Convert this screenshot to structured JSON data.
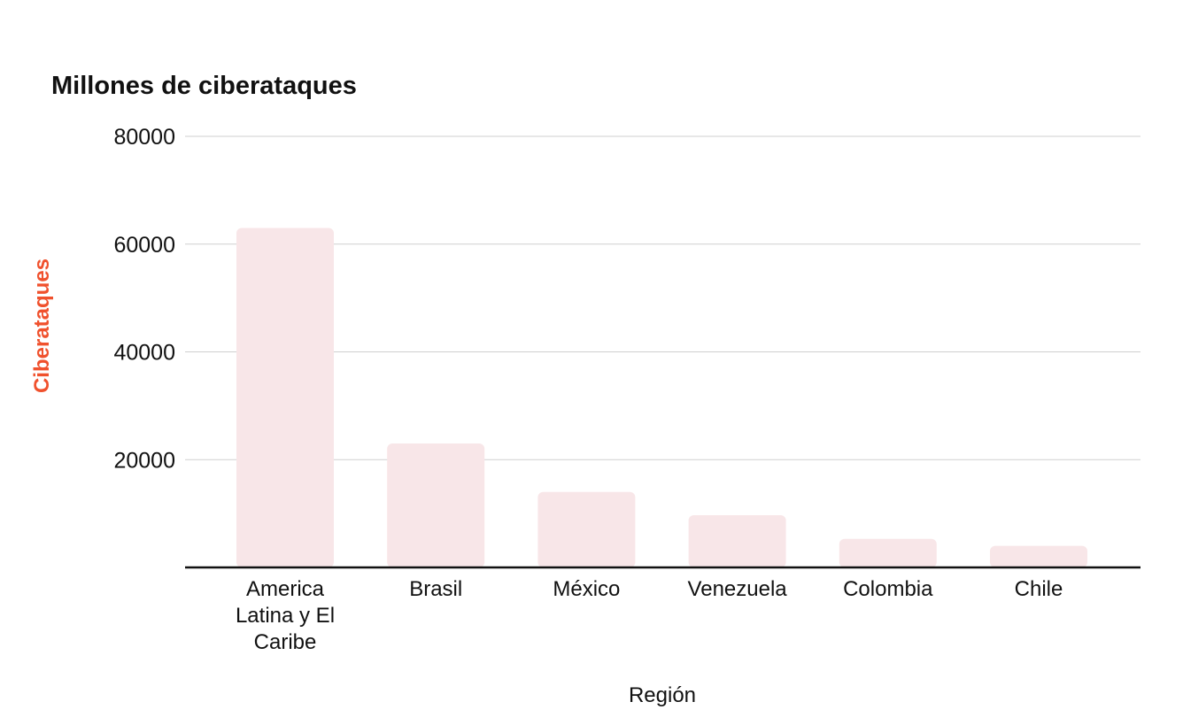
{
  "chart_data": {
    "type": "bar",
    "title": "Millones de ciberataques",
    "xlabel": "Región",
    "ylabel": "Ciberataques",
    "categories": [
      [
        "America",
        "Latina y El",
        "Caribe"
      ],
      [
        "Brasil"
      ],
      [
        "México"
      ],
      [
        "Venezuela"
      ],
      [
        "Colombia"
      ],
      [
        "Chile"
      ]
    ],
    "values": [
      63000,
      23000,
      14000,
      9700,
      5300,
      4000
    ],
    "ylim": [
      0,
      80000
    ],
    "yticks": [
      {
        "value": 20000,
        "label": "20000"
      },
      {
        "value": 40000,
        "label": "40000"
      },
      {
        "value": 60000,
        "label": "60000"
      },
      {
        "value": 80000,
        "label": "80000"
      }
    ],
    "grid": true,
    "legend": "none"
  },
  "colors": {
    "bar": "#f8e6e8",
    "ylabel": "#f0512d",
    "grid": "#cfcfcf",
    "axis": "#111111"
  }
}
